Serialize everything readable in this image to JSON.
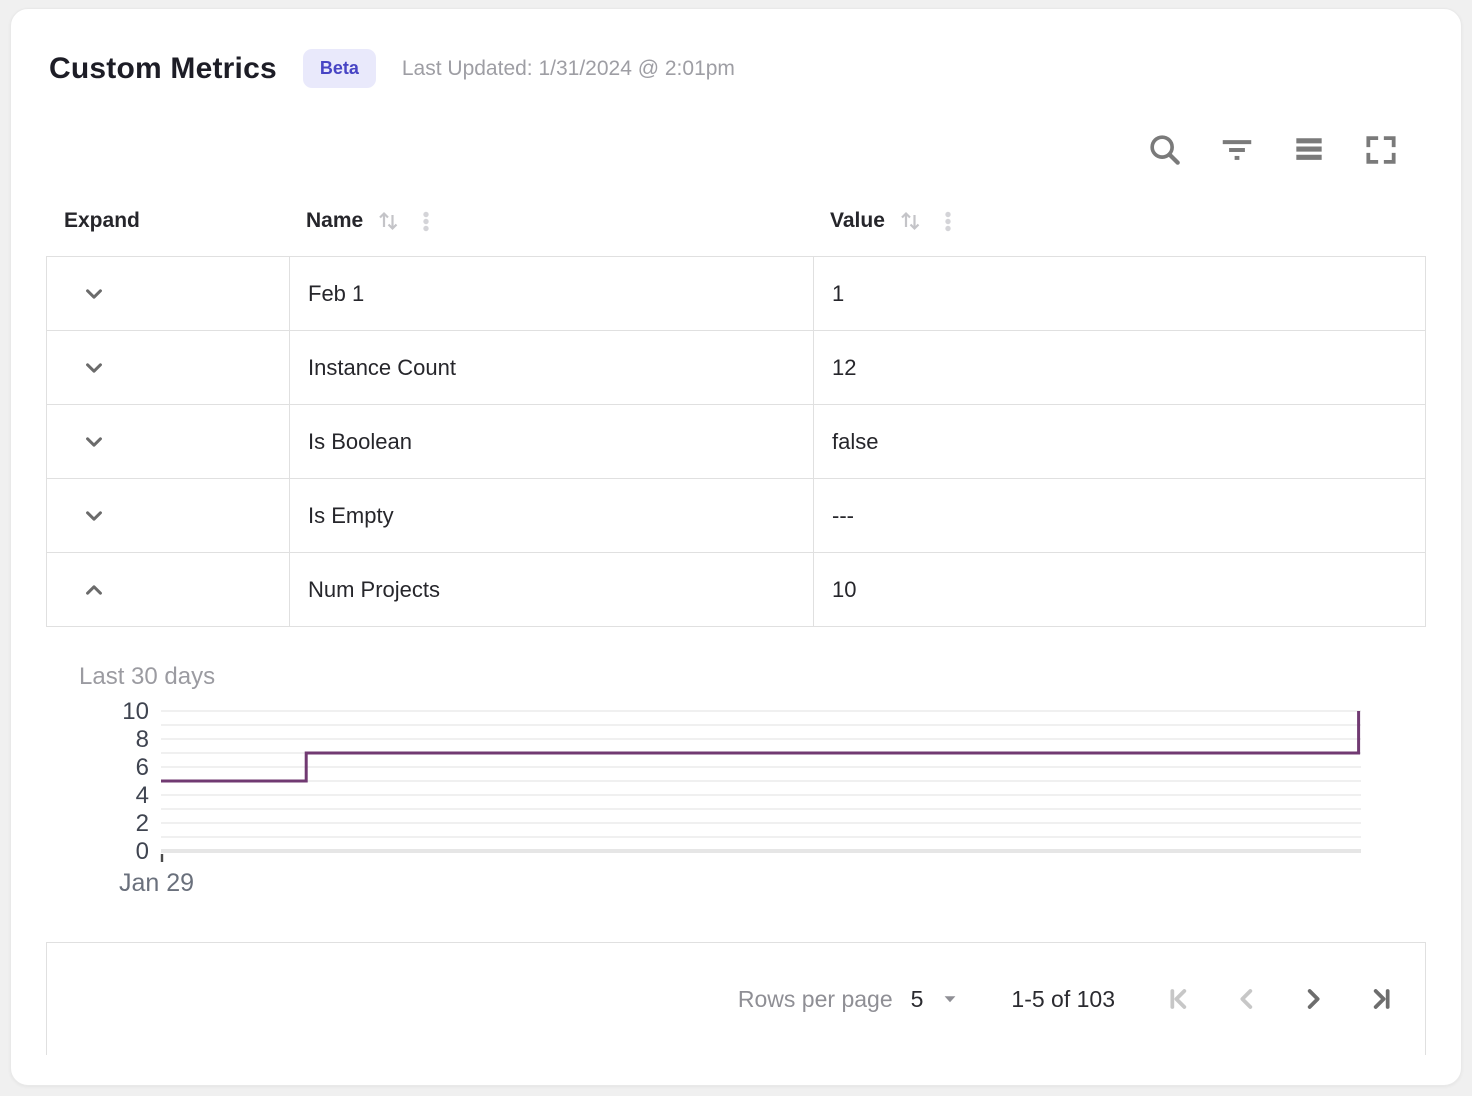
{
  "header": {
    "title": "Custom Metrics",
    "badge": "Beta",
    "last_updated": "Last Updated: 1/31/2024 @ 2:01pm"
  },
  "toolbar": {
    "icons": [
      "search-icon",
      "filter-icon",
      "density-icon",
      "fullscreen-icon"
    ]
  },
  "table": {
    "columns": [
      {
        "label": "Expand",
        "sortable": false
      },
      {
        "label": "Name",
        "sortable": true
      },
      {
        "label": "Value",
        "sortable": true
      }
    ],
    "rows": [
      {
        "name": "Feb 1",
        "value": "1",
        "expanded": false
      },
      {
        "name": "Instance Count",
        "value": "12",
        "expanded": false
      },
      {
        "name": "Is Boolean",
        "value": "false",
        "expanded": false
      },
      {
        "name": "Is Empty",
        "value": "---",
        "expanded": false
      },
      {
        "name": "Num Projects",
        "value": "10",
        "expanded": true
      }
    ]
  },
  "detail_panel": {
    "label": "Last 30 days"
  },
  "chart_data": {
    "type": "line",
    "style": "step",
    "title": "Last 30 days",
    "series": [
      {
        "name": "Num Projects",
        "points": [
          {
            "x": 0.0,
            "y": 5
          },
          {
            "x": 0.121,
            "y": 5
          },
          {
            "x": 0.121,
            "y": 7
          },
          {
            "x": 0.998,
            "y": 7
          },
          {
            "x": 0.998,
            "y": 10
          }
        ]
      }
    ],
    "ylim": [
      0,
      10
    ],
    "y_ticks": [
      0,
      2,
      4,
      6,
      8,
      10
    ],
    "x_tick_labels": [
      "Jan 29"
    ],
    "grid": true,
    "legend": false
  },
  "footer": {
    "rows_per_page_label": "Rows per page",
    "rows_per_page_value": "5",
    "range_label": "1-5 of 103",
    "pagination": {
      "first_disabled": true,
      "prev_disabled": true,
      "next_disabled": false,
      "last_disabled": false
    }
  },
  "colors": {
    "badge_bg": "#e9e9fb",
    "badge_text": "#4744c4",
    "chart_line": "#713a72",
    "grid_line": "#f0f0f0",
    "axis_line": "#e6e6e6",
    "tick_text": "#3f4450",
    "x_label_text": "#6a707c"
  }
}
